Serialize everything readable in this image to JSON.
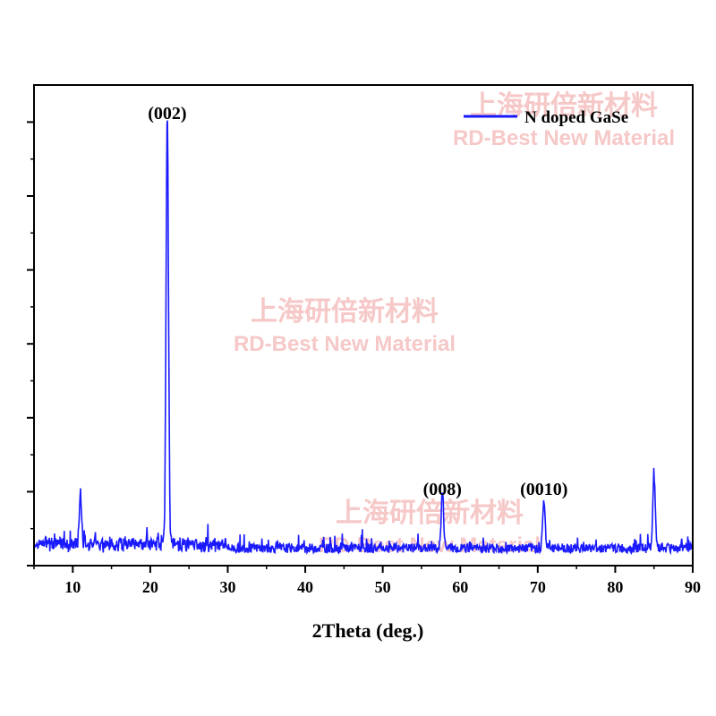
{
  "chart_data": {
    "type": "line",
    "xlabel": "2Theta (deg.)",
    "ylabel": "",
    "xlim": [
      5,
      90
    ],
    "ylim": [
      0,
      100
    ],
    "x_ticks": [
      "10",
      "20",
      "30",
      "40",
      "50",
      "60",
      "70",
      "80",
      "90"
    ],
    "y_tick_labels_shown": false,
    "grid": false,
    "legend_position": "top-right",
    "series": [
      {
        "name": "N doped GaSe",
        "color": "#1a1aff",
        "peaks": [
          {
            "x": 11.0,
            "y": 11
          },
          {
            "x": 22.2,
            "y": 100
          },
          {
            "x": 57.7,
            "y": 13
          },
          {
            "x": 70.8,
            "y": 11
          },
          {
            "x": 85.0,
            "y": 17
          }
        ]
      }
    ],
    "annotations": [
      {
        "text": "(002)",
        "x": 22.2
      },
      {
        "text": "(008)",
        "x": 57.7
      },
      {
        "text": "(0010)",
        "x": 70.8
      }
    ]
  },
  "watermarks": [
    {
      "cn": "上海研倍新材料",
      "en": "RD-Best New Material"
    },
    {
      "cn": "上海研倍新材料",
      "en": "RD-Best New Material"
    },
    {
      "cn": "上海研倍新材料",
      "en": "RD-Best New Material"
    }
  ]
}
